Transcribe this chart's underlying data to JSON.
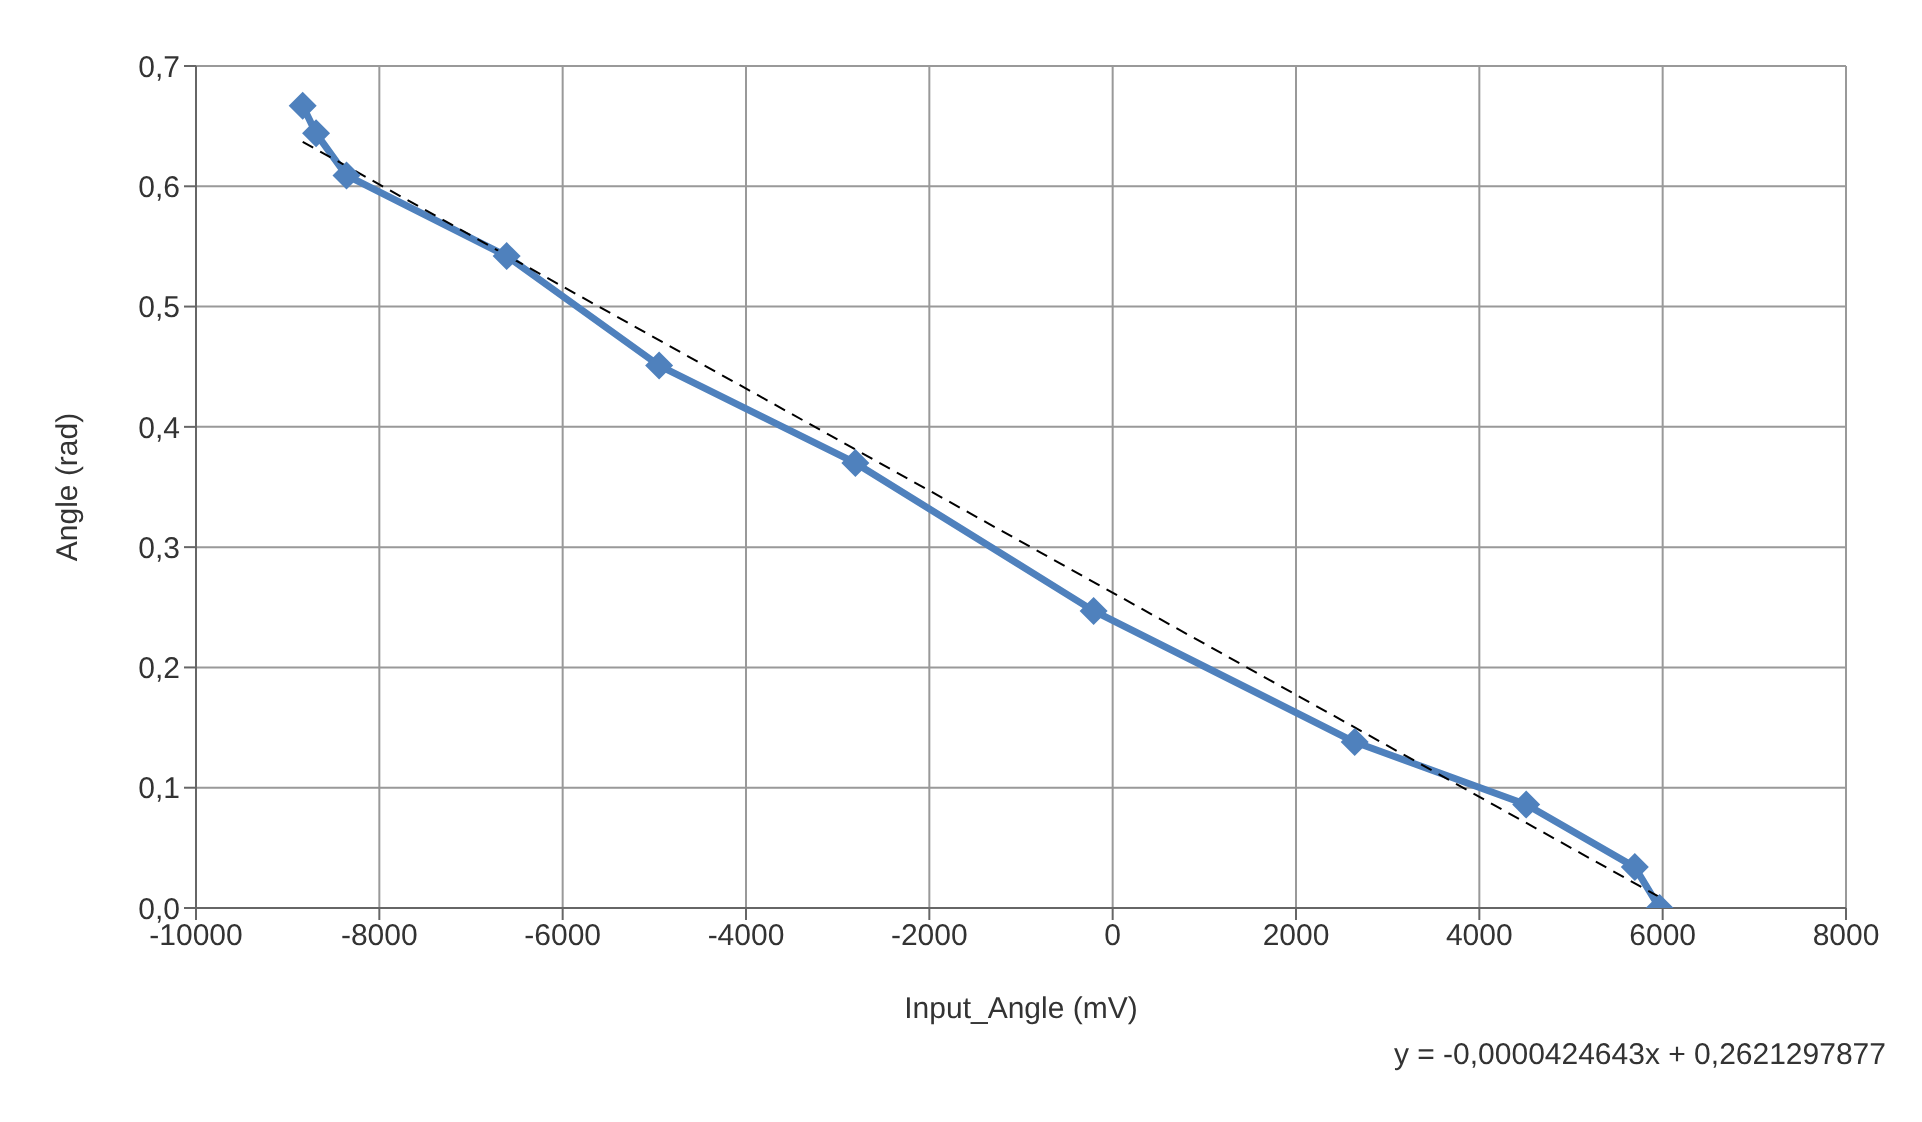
{
  "chart_data": {
    "type": "line",
    "xlabel": "Input_Angle (mV)",
    "ylabel": "Angle (rad)",
    "xlim": [
      -10000,
      8000
    ],
    "xticks": [
      -10000,
      -8000,
      -6000,
      -4000,
      -2000,
      0,
      2000,
      4000,
      6000,
      8000
    ],
    "ylim": [
      0,
      0.7
    ],
    "yticks": [
      {
        "value": 0,
        "label": "0,0"
      },
      {
        "value": 0.1,
        "label": "0,1"
      },
      {
        "value": 0.2,
        "label": "0,2"
      },
      {
        "value": 0.3,
        "label": "0,3"
      },
      {
        "value": 0.4,
        "label": "0,4"
      },
      {
        "value": 0.5,
        "label": "0,5"
      },
      {
        "value": 0.6,
        "label": "0,6"
      },
      {
        "value": 0.7,
        "label": "0,7"
      }
    ],
    "grid": true,
    "series": [
      {
        "type": "line",
        "color": "#4f81bd",
        "marker": "diamond",
        "line_style": "solid",
        "x": [
          -8836,
          -8690,
          -8358,
          -6611,
          -4948,
          -2807,
          -208,
          2640,
          4511,
          5696,
          5967
        ],
        "values": [
          0.667,
          0.644,
          0.609,
          0.542,
          0.451,
          0.37,
          0.247,
          0.138,
          0.086,
          0.034,
          0.0
        ]
      },
      {
        "type": "line",
        "color": "#000000",
        "marker": "none",
        "line_style": "dashed",
        "x": [
          -8836,
          5967
        ],
        "values": [
          0.637,
          0.009
        ]
      }
    ],
    "annotations": [
      "y = -0,0000424643x + 0,2621297877"
    ]
  }
}
